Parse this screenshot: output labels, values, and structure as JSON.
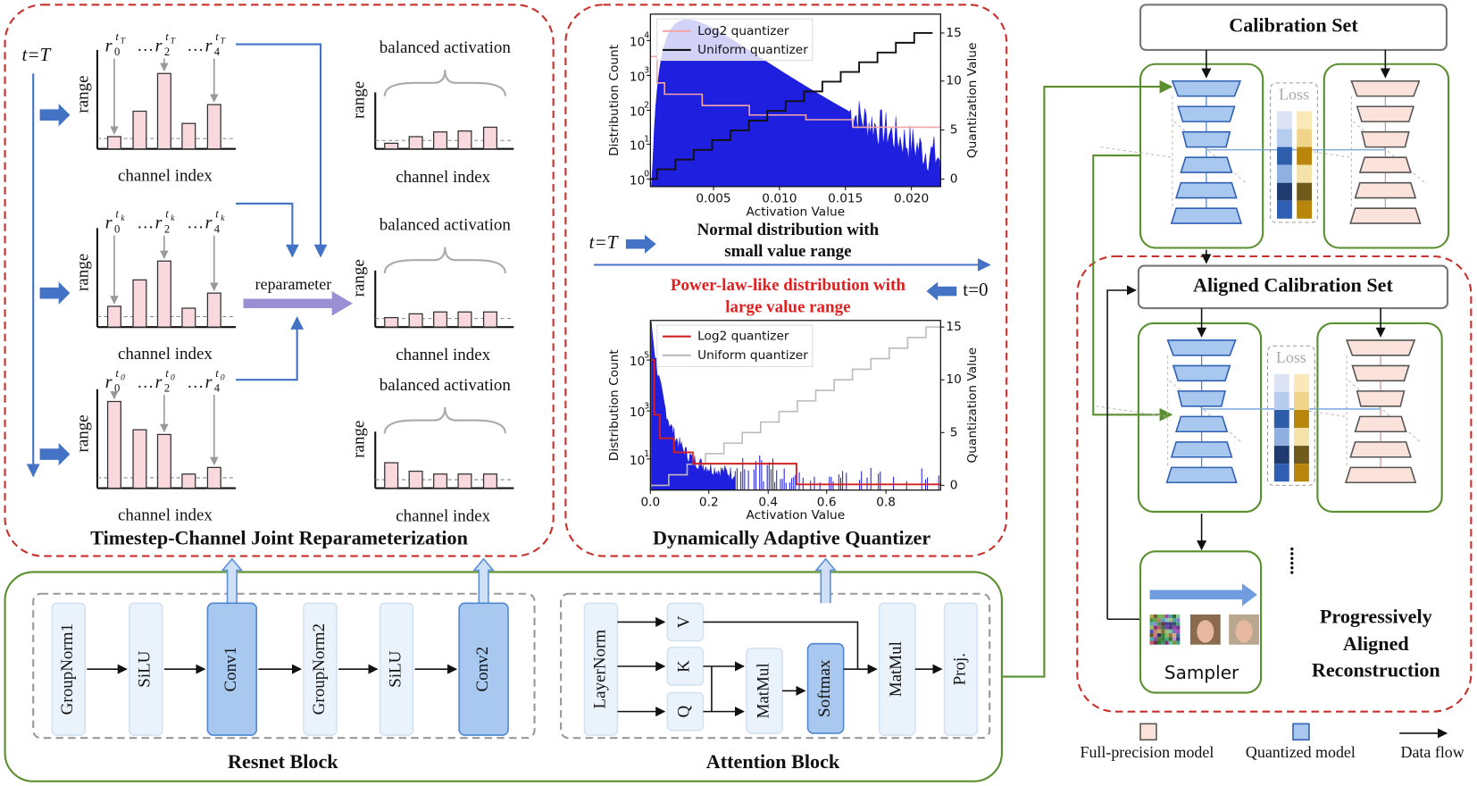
{
  "left_panel": {
    "title": "Timestep-Channel Joint Reparameterization",
    "time_label": "t=T",
    "reparameter": "reparameter",
    "rows": [
      {
        "labels": [
          {
            "base": "r",
            "sub": "0",
            "sup": "t",
            "sup_sub": "T"
          },
          {
            "base": "r",
            "sub": "2",
            "sup": "t",
            "sup_sub": "T"
          },
          {
            "base": "r",
            "sub": "4",
            "sup": "t",
            "sup_sub": "T"
          }
        ],
        "dots": [
          "…",
          "…"
        ],
        "y_label": "range",
        "x_label": "channel index",
        "balanced_title": "balanced activation",
        "balanced_y_label": "range",
        "balanced_x_label": "channel index"
      },
      {
        "labels": [
          {
            "base": "r",
            "sub": "0",
            "sup": "t",
            "sup_sub": "k"
          },
          {
            "base": "r",
            "sub": "2",
            "sup": "t",
            "sup_sub": "k"
          },
          {
            "base": "r",
            "sub": "4",
            "sup": "t",
            "sup_sub": "k"
          }
        ],
        "dots": [
          "…",
          "…"
        ],
        "y_label": "range",
        "x_label": "channel index",
        "balanced_title": "balanced activation",
        "balanced_y_label": "range",
        "balanced_x_label": "channel index"
      },
      {
        "labels": [
          {
            "base": "r",
            "sub": "0",
            "sup": "t",
            "sup_sub": "0"
          },
          {
            "base": "r",
            "sub": "2",
            "sup": "t",
            "sup_sub": "0"
          },
          {
            "base": "r",
            "sub": "4",
            "sup": "t",
            "sup_sub": "0"
          }
        ],
        "dots": [
          "…",
          "…"
        ],
        "y_label": "range",
        "x_label": "channel index",
        "balanced_title": "balanced activation",
        "balanced_y_label": "range",
        "balanced_x_label": "channel index"
      }
    ]
  },
  "middle_panel": {
    "title": "Dynamically Adaptive Quantizer",
    "start_label": "t=T",
    "end_label": "t=0",
    "top_caption": [
      "Normal distribution with",
      "small value range"
    ],
    "bottom_caption": [
      "Power-law-like distribution with",
      "large value range"
    ],
    "top_chart": {
      "legend": [
        "Log2 quantizer",
        "Uniform quantizer"
      ],
      "y_label": "Distribution Count",
      "y2_label": "Quantization Value",
      "x_label": "Activation Value",
      "xticks": [
        "0.005",
        "0.010",
        "0.015",
        "0.020"
      ],
      "yticks": [
        {
          "base": "10",
          "exp": "0"
        },
        {
          "base": "10",
          "exp": "1"
        },
        {
          "base": "10",
          "exp": "2"
        },
        {
          "base": "10",
          "exp": "3"
        },
        {
          "base": "10",
          "exp": "4"
        }
      ],
      "y2ticks": [
        "0",
        "5",
        "10",
        "15"
      ]
    },
    "bottom_chart": {
      "legend": [
        "Log2 quantizer",
        "Uniform quantizer"
      ],
      "y_label": "Distribution Count",
      "y2_label": "Quantization Value",
      "x_label": "Activation Value",
      "xticks": [
        "0.0",
        "0.2",
        "0.4",
        "0.6",
        "0.8"
      ],
      "yticks": [
        {
          "base": "10",
          "exp": "1"
        },
        {
          "base": "10",
          "exp": "3"
        },
        {
          "base": "10",
          "exp": "5"
        }
      ],
      "y2ticks": [
        "0",
        "5",
        "10",
        "15"
      ]
    }
  },
  "bottom_panel": {
    "resnet": {
      "title": "Resnet Block",
      "layers": [
        "GroupNorm1",
        "SiLU",
        "Conv1",
        "GroupNorm2",
        "SiLU",
        "Conv2"
      ]
    },
    "attention": {
      "title": "Attention Block",
      "layers": [
        "LayerNorm",
        "V",
        "K",
        "Q",
        "MatMul",
        "Softmax",
        "MatMul",
        "Proj."
      ]
    }
  },
  "right_panel": {
    "calibration_set": "Calibration Set",
    "aligned_calibration_set": "Aligned Calibration Set",
    "stages": [
      {
        "loss": "Loss"
      },
      {
        "loss": "Loss"
      }
    ],
    "sampler": "Sampler",
    "more": "......",
    "title": [
      "Progressively",
      "Aligned",
      "Reconstruction"
    ]
  },
  "legend": {
    "full_precision": "Full-precision model",
    "quantized": "Quantized model",
    "data_flow": "Data flow"
  }
}
